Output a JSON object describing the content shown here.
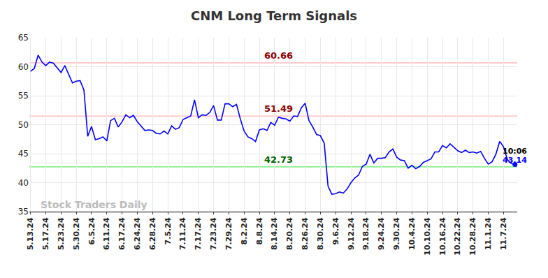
{
  "chart_data": {
    "type": "line",
    "title": "CNM Long Term Signals",
    "watermark": "Stock Traders Daily",
    "time_label": "10:06",
    "color": "#0000ff",
    "grid": true,
    "ylim": [
      35,
      65
    ],
    "yticks": [
      35,
      40,
      45,
      50,
      55,
      60,
      65
    ],
    "levels": [
      {
        "value": 60.66,
        "color": "#ffcccc",
        "label_color": "#8b0000"
      },
      {
        "value": 51.49,
        "color": "#ffcccc",
        "label_color": "#8b0000"
      },
      {
        "value": 42.73,
        "color": "#90ee90",
        "label_color": "#006400"
      }
    ],
    "categories": [
      "5.13.24",
      null,
      null,
      null,
      "5.17.24",
      null,
      null,
      null,
      "5.23.24",
      null,
      null,
      null,
      "5.30.24",
      null,
      null,
      null,
      "6.5.24",
      null,
      null,
      null,
      "6.11.24",
      null,
      null,
      null,
      "6.17.24",
      null,
      null,
      null,
      "6.24.24",
      null,
      null,
      null,
      "6.28.24",
      null,
      null,
      null,
      "7.5.24",
      null,
      null,
      null,
      "7.11.24",
      null,
      null,
      null,
      "7.17.24",
      null,
      null,
      null,
      "7.23.24",
      null,
      null,
      null,
      "7.29.24",
      null,
      null,
      null,
      "8.2.24",
      null,
      null,
      null,
      "8.8.24",
      null,
      null,
      null,
      "8.14.24",
      null,
      null,
      null,
      "8.20.24",
      null,
      null,
      null,
      "8.26.24",
      null,
      null,
      null,
      "8.30.24",
      null,
      null,
      null,
      "9.6.24",
      null,
      null,
      null,
      "9.12.24",
      null,
      null,
      null,
      "9.18.24",
      null,
      null,
      null,
      "9.24.24",
      null,
      null,
      null,
      "9.30.24",
      null,
      null,
      null,
      "10.4.24",
      null,
      null,
      null,
      "10.10.24",
      null,
      null,
      null,
      "10.16.24",
      null,
      null,
      null,
      "10.22.24",
      null,
      null,
      null,
      "10.28.24",
      null,
      null,
      null,
      "11.1.24",
      null,
      null,
      null,
      "11.7.24",
      null,
      null,
      null
    ],
    "values": [
      59.2,
      59.7,
      62.0,
      60.8,
      60.2,
      60.8,
      60.6,
      59.8,
      59.0,
      60.2,
      58.8,
      57.2,
      57.5,
      57.6,
      56.0,
      48.0,
      49.7,
      47.4,
      47.6,
      47.9,
      47.2,
      50.7,
      51.1,
      49.6,
      50.5,
      51.7,
      51.2,
      51.6,
      50.5,
      49.8,
      49.0,
      49.1,
      49.0,
      48.5,
      48.4,
      48.9,
      48.4,
      49.8,
      49.2,
      49.5,
      50.9,
      51.2,
      51.5,
      54.3,
      51.2,
      51.7,
      51.6,
      52.1,
      53.3,
      50.8,
      50.8,
      53.6,
      53.6,
      53.1,
      53.5,
      51.0,
      48.9,
      47.9,
      47.6,
      47.1,
      49.1,
      49.3,
      49.0,
      50.4,
      49.9,
      51.3,
      51.1,
      51.0,
      50.6,
      51.5,
      51.4,
      52.9,
      53.7,
      50.7,
      49.6,
      48.3,
      48.1,
      46.8,
      39.4,
      38.0,
      38.1,
      38.4,
      38.2,
      38.9,
      40.0,
      40.8,
      41.3,
      42.8,
      43.2,
      44.9,
      43.4,
      44.2,
      44.2,
      44.3,
      45.3,
      45.8,
      44.4,
      43.9,
      43.8,
      42.5,
      43.0,
      42.4,
      42.8,
      43.5,
      43.8,
      44.1,
      45.3,
      45.3,
      46.4,
      46.0,
      46.7,
      46.1,
      45.5,
      45.2,
      45.6,
      45.2,
      45.3,
      45.1,
      45.4,
      44.2,
      43.2,
      43.6,
      44.9,
      47.1,
      46.2,
      44.0,
      43.3,
      43.14
    ]
  }
}
